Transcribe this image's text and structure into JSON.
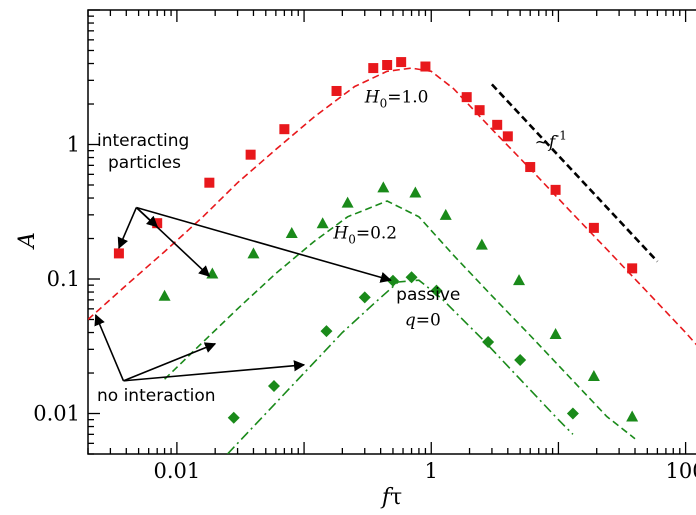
{
  "chart_data": {
    "type": "scatter",
    "x_scale": "log",
    "y_scale": "log",
    "xlabel_main": "f",
    "xlabel_symbol": "τ",
    "ylabel": "A",
    "xlim": [
      0.002,
      150
    ],
    "ylim": [
      0.005,
      10
    ],
    "x_ticks": [
      {
        "value": 0.01,
        "label": "0.01"
      },
      {
        "value": 1,
        "label": "1"
      },
      {
        "value": 100,
        "label": "100"
      }
    ],
    "y_ticks": [
      {
        "value": 0.01,
        "label": "0.01"
      },
      {
        "value": 0.1,
        "label": "0.1"
      },
      {
        "value": 1,
        "label": "1"
      }
    ],
    "series": [
      {
        "marker": "square",
        "color": "#e8181c",
        "points": [
          [
            0.0035,
            0.155
          ],
          [
            0.007,
            0.26
          ],
          [
            0.018,
            0.52
          ],
          [
            0.038,
            0.84
          ],
          [
            0.07,
            1.3
          ],
          [
            0.18,
            2.5
          ],
          [
            0.35,
            3.7
          ],
          [
            0.45,
            3.9
          ],
          [
            0.58,
            4.1
          ],
          [
            0.9,
            3.8
          ],
          [
            1.9,
            2.25
          ],
          [
            2.4,
            1.8
          ],
          [
            3.3,
            1.4
          ],
          [
            4.0,
            1.15
          ],
          [
            6.0,
            0.68
          ],
          [
            9.5,
            0.46
          ],
          [
            19,
            0.24
          ],
          [
            38,
            0.12
          ]
        ]
      },
      {
        "marker": "triangle",
        "color": "#1a8a1a",
        "points": [
          [
            0.008,
            0.075
          ],
          [
            0.019,
            0.11
          ],
          [
            0.04,
            0.155
          ],
          [
            0.08,
            0.22
          ],
          [
            0.14,
            0.26
          ],
          [
            0.22,
            0.37
          ],
          [
            0.42,
            0.48
          ],
          [
            0.75,
            0.44
          ],
          [
            1.3,
            0.3
          ],
          [
            2.5,
            0.18
          ],
          [
            4.9,
            0.098
          ],
          [
            9.5,
            0.039
          ],
          [
            19,
            0.019
          ],
          [
            38,
            0.0095
          ]
        ]
      },
      {
        "marker": "diamond",
        "color": "#1a8a1a",
        "points": [
          [
            0.028,
            0.0093
          ],
          [
            0.058,
            0.016
          ],
          [
            0.15,
            0.041
          ],
          [
            0.3,
            0.073
          ],
          [
            0.5,
            0.097
          ],
          [
            0.7,
            0.103
          ],
          [
            1.1,
            0.082
          ],
          [
            2.8,
            0.034
          ],
          [
            5.0,
            0.025
          ],
          [
            13,
            0.01
          ]
        ]
      }
    ],
    "lines": [
      {
        "style": "dashed",
        "color": "#e8181c",
        "points": [
          [
            0.002,
            0.05
          ],
          [
            0.004,
            0.09
          ],
          [
            0.008,
            0.16
          ],
          [
            0.016,
            0.29
          ],
          [
            0.03,
            0.52
          ],
          [
            0.06,
            0.92
          ],
          [
            0.12,
            1.6
          ],
          [
            0.25,
            2.7
          ],
          [
            0.45,
            3.5
          ],
          [
            0.7,
            3.7
          ],
          [
            1.0,
            3.5
          ],
          [
            1.5,
            2.6
          ],
          [
            3,
            1.3
          ],
          [
            6,
            0.66
          ],
          [
            12,
            0.33
          ],
          [
            25,
            0.16
          ],
          [
            50,
            0.08
          ],
          [
            100,
            0.04
          ],
          [
            150,
            0.026
          ]
        ]
      },
      {
        "style": "dashed",
        "color": "#000000",
        "points": [
          [
            3.0,
            2.8
          ],
          [
            60,
            0.135
          ]
        ]
      },
      {
        "style": "dashed",
        "color": "#1a8a1a",
        "points": [
          [
            0.008,
            0.018
          ],
          [
            0.015,
            0.032
          ],
          [
            0.03,
            0.06
          ],
          [
            0.06,
            0.11
          ],
          [
            0.12,
            0.19
          ],
          [
            0.22,
            0.29
          ],
          [
            0.45,
            0.38
          ],
          [
            0.8,
            0.29
          ],
          [
            1.5,
            0.15
          ],
          [
            3,
            0.075
          ],
          [
            6,
            0.038
          ],
          [
            12,
            0.019
          ],
          [
            24,
            0.0095
          ],
          [
            40,
            0.0065
          ]
        ]
      },
      {
        "style": "dashdot",
        "color": "#1a8a1a",
        "points": [
          [
            0.025,
            0.005
          ],
          [
            0.05,
            0.01
          ],
          [
            0.1,
            0.02
          ],
          [
            0.2,
            0.04
          ],
          [
            0.35,
            0.065
          ],
          [
            0.55,
            0.095
          ],
          [
            0.8,
            0.098
          ],
          [
            1.2,
            0.072
          ],
          [
            2.5,
            0.036
          ],
          [
            5,
            0.018
          ],
          [
            10,
            0.009
          ],
          [
            13,
            0.007
          ]
        ]
      }
    ],
    "annotations": [
      {
        "id": "h0-10-label",
        "pre": "H",
        "sub": "0",
        "post": "=1.0",
        "x": 0.3,
        "y": 2.05
      },
      {
        "id": "h0-02-label",
        "pre": "H",
        "sub": "0",
        "post": "=0.2",
        "x": 0.17,
        "y": 0.2
      },
      {
        "id": "fpower-label",
        "pre": "~f",
        "sup": "-1",
        "x": 6.5,
        "y": 0.95
      },
      {
        "id": "passive-label",
        "text": "passive",
        "x": 0.53,
        "y": 0.07
      },
      {
        "id": "q0-label",
        "pre": "q",
        "post": "=0",
        "x": 0.62,
        "y": 0.045
      }
    ],
    "interacting_label": [
      "interacting",
      "particles"
    ],
    "no_interaction_label": "no interaction",
    "arrows": [
      {
        "from": [
          0.0048,
          0.34
        ],
        "to": [
          0.0035,
          0.17
        ]
      },
      {
        "from": [
          0.0048,
          0.34
        ],
        "to": [
          0.007,
          0.245
        ]
      },
      {
        "from": [
          0.0048,
          0.34
        ],
        "to": [
          0.018,
          0.105
        ]
      },
      {
        "from": [
          0.0048,
          0.34
        ],
        "to": [
          0.48,
          0.098
        ]
      },
      {
        "from": [
          0.0038,
          0.0175
        ],
        "to": [
          0.0023,
          0.054
        ]
      },
      {
        "from": [
          0.0038,
          0.0175
        ],
        "to": [
          0.02,
          0.033
        ]
      },
      {
        "from": [
          0.0038,
          0.0175
        ],
        "to": [
          0.1,
          0.023
        ]
      }
    ]
  }
}
